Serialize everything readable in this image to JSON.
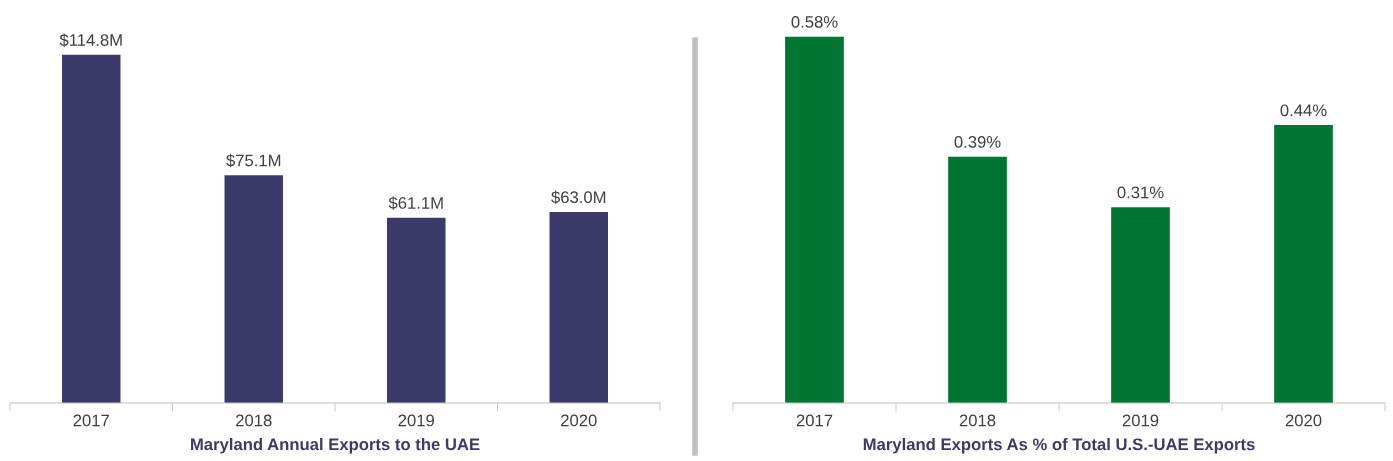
{
  "chart_data": [
    {
      "type": "bar",
      "xlabel": "Maryland Annual Exports to the UAE",
      "categories": [
        "2017",
        "2018",
        "2019",
        "2020"
      ],
      "values": [
        114.8,
        75.1,
        61.1,
        63.0
      ],
      "value_labels": [
        "$114.8M",
        "$75.1M",
        "$61.1M",
        "$63.0M"
      ],
      "color": "#3b3a6b",
      "grid": false,
      "legend": false
    },
    {
      "type": "bar",
      "xlabel": "Maryland Exports As % of Total U.S.-UAE Exports",
      "categories": [
        "2017",
        "2018",
        "2019",
        "2020"
      ],
      "values": [
        0.58,
        0.39,
        0.31,
        0.44
      ],
      "value_labels": [
        "0.58%",
        "0.39%",
        "0.31%",
        "0.44%"
      ],
      "color": "#007632",
      "grid": false,
      "legend": false
    }
  ]
}
